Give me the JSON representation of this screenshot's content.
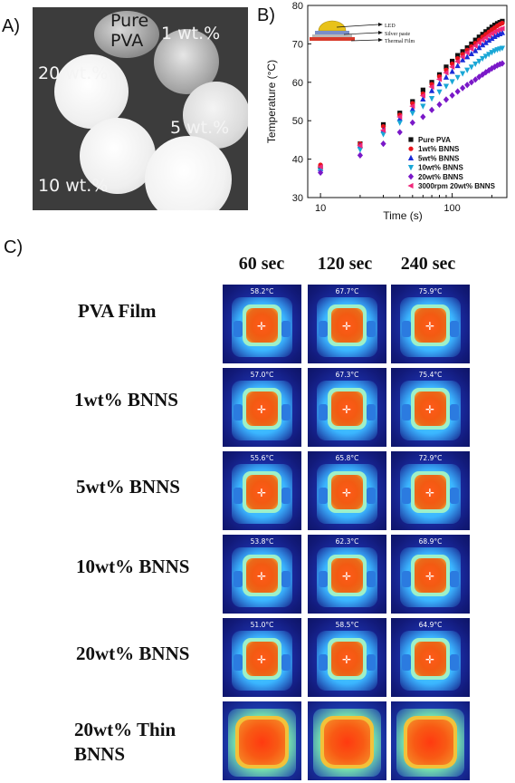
{
  "panel_a": {
    "label": "A)",
    "photo_labels": [
      "Pure",
      "PVA",
      "1 wt.%",
      "20 wt.%",
      "5 wt.%",
      "10 wt.%"
    ]
  },
  "panel_b": {
    "label": "B)"
  },
  "panel_c": {
    "label": "C)",
    "columns": [
      "60 sec",
      "120 sec",
      "240 sec"
    ],
    "rows": [
      {
        "label": "PVA Film",
        "temps": [
          "58.2°C",
          "67.7°C",
          "75.9°C"
        ]
      },
      {
        "label": "1wt% BNNS",
        "temps": [
          "57.0°C",
          "67.3°C",
          "75.4°C"
        ]
      },
      {
        "label": "5wt% BNNS",
        "temps": [
          "55.6°C",
          "65.8°C",
          "72.9°C"
        ]
      },
      {
        "label": "10wt% BNNS",
        "temps": [
          "53.8°C",
          "62.3°C",
          "68.9°C"
        ]
      },
      {
        "label": "20wt% BNNS",
        "temps": [
          "51.0°C",
          "58.5°C",
          "64.9°C"
        ]
      },
      {
        "label": "20wt% Thin",
        "label2": "BNNS",
        "temps": [
          "",
          "",
          ""
        ]
      }
    ]
  },
  "chart_data": {
    "type": "scatter",
    "xlabel": "Time (s)",
    "ylabel": "Temperature (°C)",
    "xscale": "log",
    "xlim": [
      8,
      260
    ],
    "ylim": [
      30,
      80
    ],
    "xticks": [
      10,
      100
    ],
    "yticks": [
      30,
      40,
      50,
      60,
      70,
      80
    ],
    "legend_position": "bottom-right",
    "inset_labels": [
      "LED",
      "Silver paste",
      "Thermal Film"
    ],
    "series": [
      {
        "name": "Pure PVA",
        "color": "#111111",
        "marker": "square",
        "x": [
          10,
          20,
          30,
          40,
          50,
          60,
          70,
          80,
          90,
          100,
          110,
          120,
          130,
          140,
          150,
          160,
          170,
          180,
          190,
          200,
          210,
          220,
          230,
          240
        ],
        "y": [
          38,
          44,
          49,
          52,
          55,
          58,
          60,
          62,
          64,
          65.5,
          67,
          68,
          69,
          70,
          71,
          71.8,
          72.5,
          73.2,
          73.8,
          74.4,
          74.9,
          75.3,
          75.6,
          75.9
        ]
      },
      {
        "name": "1wt% BNNS",
        "color": "#e8141c",
        "marker": "circle",
        "x": [
          10,
          20,
          30,
          40,
          50,
          60,
          70,
          80,
          90,
          100,
          110,
          120,
          130,
          140,
          150,
          160,
          170,
          180,
          190,
          200,
          210,
          220,
          230,
          240
        ],
        "y": [
          38.5,
          44,
          48.5,
          51.5,
          54.5,
          57,
          59.5,
          61.5,
          63.2,
          64.8,
          66.2,
          67.3,
          68.4,
          69.3,
          70.2,
          71,
          71.8,
          72.5,
          73.1,
          73.7,
          74.2,
          74.7,
          75.1,
          75.4
        ]
      },
      {
        "name": "5wt% BNNS",
        "color": "#1a2bd8",
        "marker": "triangle-up",
        "x": [
          10,
          20,
          30,
          40,
          50,
          60,
          70,
          80,
          90,
          100,
          110,
          120,
          130,
          140,
          150,
          160,
          170,
          180,
          190,
          200,
          210,
          220,
          230,
          240
        ],
        "y": [
          37.5,
          43.5,
          47.5,
          50.5,
          53,
          55.6,
          57.8,
          59.6,
          61.3,
          62.8,
          64.3,
          65.8,
          66.6,
          67.4,
          68.2,
          69,
          69.7,
          70.3,
          70.9,
          71.4,
          71.9,
          72.3,
          72.6,
          72.9
        ]
      },
      {
        "name": "10wt% BNNS",
        "color": "#19a7d6",
        "marker": "triangle-down",
        "x": [
          10,
          20,
          30,
          40,
          50,
          60,
          70,
          80,
          90,
          100,
          110,
          120,
          130,
          140,
          150,
          160,
          170,
          180,
          190,
          200,
          210,
          220,
          230,
          240
        ],
        "y": [
          37,
          42.5,
          46.5,
          49.5,
          52,
          53.8,
          55.8,
          57.5,
          59,
          60.2,
          61.3,
          62.3,
          63.2,
          64,
          64.8,
          65.5,
          66.2,
          66.8,
          67.3,
          67.8,
          68.2,
          68.5,
          68.7,
          68.9
        ]
      },
      {
        "name": "20wt% BNNS",
        "color": "#7a18c8",
        "marker": "diamond",
        "x": [
          10,
          20,
          30,
          40,
          50,
          60,
          70,
          80,
          90,
          100,
          110,
          120,
          130,
          140,
          150,
          160,
          170,
          180,
          190,
          200,
          210,
          220,
          230,
          240
        ],
        "y": [
          36.5,
          41,
          44,
          47,
          49.5,
          51,
          52.8,
          54.2,
          55.5,
          56.6,
          57.6,
          58.5,
          59.3,
          60,
          60.7,
          61.4,
          62,
          62.6,
          63.1,
          63.6,
          64,
          64.4,
          64.7,
          64.9
        ]
      },
      {
        "name": "3000rpm 20wt% BNNS",
        "color": "#f0287a",
        "marker": "triangle-left",
        "x": [
          10,
          20,
          30,
          40,
          50,
          60,
          70,
          80,
          90,
          100,
          110,
          120,
          130,
          140,
          150,
          160,
          170,
          180,
          190,
          200,
          210,
          220,
          230,
          240
        ],
        "y": [
          38,
          43.5,
          47.5,
          51,
          53.8,
          56.5,
          58.8,
          60.8,
          62.5,
          64,
          65.4,
          66.6,
          67.7,
          68.7,
          69.5,
          70.3,
          71,
          71.6,
          72.2,
          72.7,
          73.1,
          73.5,
          73.8,
          74
        ]
      }
    ]
  }
}
